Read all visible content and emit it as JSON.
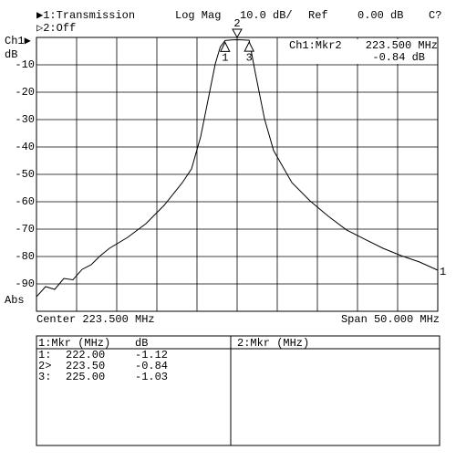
{
  "chart_data": {
    "type": "line",
    "header": {
      "trace1": "▶1:Transmission",
      "format": "Log Mag",
      "scale": "10.0 dB/",
      "ref_label": "Ref",
      "ref_value": "0.00 dB",
      "status": "C?",
      "trace2": "▷2:Off"
    },
    "channel_label": "Ch1▶",
    "y_unit": "dB",
    "y_bottom_label": "Abs",
    "ref_marker": "1",
    "x_left_label": "Center 223.500 MHz",
    "x_right_label": "Span 50.000 MHz",
    "xlim": [
      198.5,
      248.5
    ],
    "ylim": [
      -100,
      0
    ],
    "yticks": [
      -10,
      -20,
      -30,
      -40,
      -50,
      -60,
      -70,
      -80,
      -90
    ],
    "color": "#000000",
    "x": [
      198.5,
      199.64,
      200.77,
      201.91,
      203.05,
      204.18,
      205.32,
      206.45,
      207.59,
      209.86,
      212.14,
      214.41,
      216.68,
      217.82,
      218.95,
      220.09,
      220.77,
      221.4,
      222.0,
      222.8,
      223.5,
      224.3,
      225.0,
      225.77,
      226.91,
      228.05,
      230.32,
      232.59,
      234.86,
      237.14,
      239.41,
      241.68,
      243.95,
      246.23,
      248.5
    ],
    "values": [
      -94.7,
      -91,
      -92,
      -88,
      -88.5,
      -84.7,
      -83,
      -79.7,
      -77,
      -73,
      -68,
      -61.3,
      -53,
      -48,
      -36.3,
      -19.7,
      -9.7,
      -3.5,
      -1.12,
      -0.9,
      -0.84,
      -0.9,
      -1.03,
      -13,
      -29.7,
      -41.3,
      -53,
      -59.7,
      -65.3,
      -70.3,
      -73.7,
      -77,
      -79.7,
      -82,
      -85
    ],
    "markers": [
      {
        "label": "1",
        "x": 222.0,
        "value": -1.12
      },
      {
        "label": "2",
        "x": 223.5,
        "value": -0.84
      },
      {
        "label": "3",
        "x": 225.0,
        "value": -1.03
      }
    ],
    "active_marker": {
      "title": "Ch1:Mkr2",
      "frequency": "223.500 MHz",
      "level": "-0.84 dB"
    },
    "marker_table": {
      "columns": [
        "1:Mkr (MHz)",
        "dB"
      ],
      "rows": [
        [
          "1:",
          "222.00",
          "-1.12"
        ],
        [
          "2>",
          "223.50",
          "-0.84"
        ],
        [
          "3:",
          "225.00",
          "-1.03"
        ]
      ],
      "second_title": "2:Mkr (MHz)"
    }
  }
}
